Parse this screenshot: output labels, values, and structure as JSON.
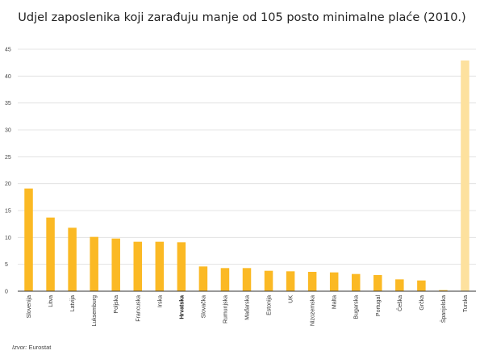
{
  "chart_data": {
    "type": "bar",
    "title": "Udjel zaposlenika koji zarađuju manje od 105 posto minimalne plaće (2010.)",
    "categories": [
      "Slovenija",
      "Litva",
      "Latvija",
      "Luksemburg",
      "Poljska",
      "Francuska",
      "Irska",
      "Hrvatska",
      "Slovačka",
      "Rumunjska",
      "Mađarska",
      "Estonija",
      "UK",
      "Nizozemska",
      "Malta",
      "Bugarska",
      "Portugal",
      "Češka",
      "Grčka",
      "Španjolska",
      "Turska"
    ],
    "values": [
      19.1,
      13.7,
      11.8,
      10.1,
      9.8,
      9.2,
      9.2,
      9.1,
      4.6,
      4.3,
      4.3,
      3.8,
      3.7,
      3.6,
      3.5,
      3.2,
      3.0,
      2.2,
      2.0,
      0.2,
      42.9
    ],
    "highlighted_category": "Hrvatska",
    "xlabel": "",
    "ylabel": "",
    "ylim": [
      0,
      45
    ],
    "yticks": [
      0,
      5,
      10,
      15,
      20,
      25,
      30,
      35,
      40,
      45
    ],
    "grid": true,
    "colors": {
      "bar": "#fbb924",
      "bar_last": "#fde19e",
      "grid": "#dddddd",
      "axis": "#333333"
    }
  },
  "source": {
    "prefix": "Izvor:",
    "text": "Eurostat"
  }
}
